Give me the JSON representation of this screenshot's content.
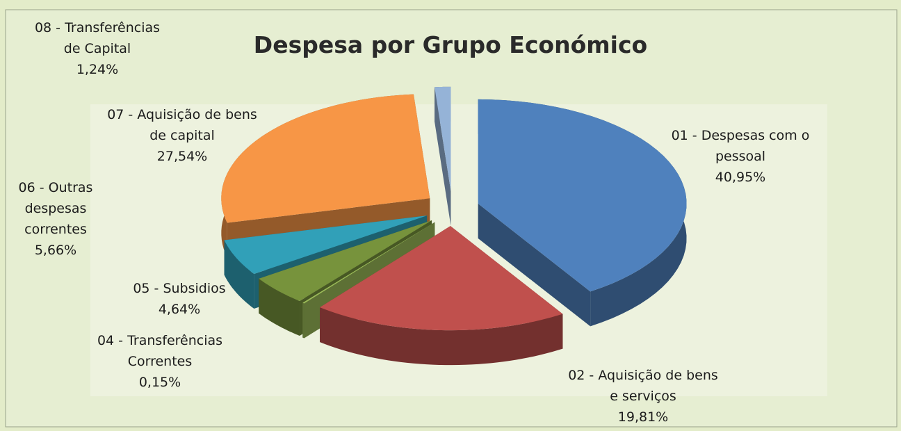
{
  "chart_data": {
    "type": "pie",
    "title": "Despesa por Grupo Económico",
    "categories": [
      "01 - Despesas com o pessoal",
      "02 - Aquisição de bens e serviços",
      "04 - Transferências Correntes",
      "05 - Subsidios",
      "06 - Outras despesas correntes",
      "07 - Aquisição de bens de capital",
      "08 - Transferências de Capital"
    ],
    "values": [
      40.95,
      19.81,
      0.15,
      4.64,
      5.66,
      27.54,
      1.24
    ],
    "value_labels": [
      "40,95%",
      "19,81%",
      "0,15%",
      "4,64%",
      "5,66%",
      "27,54%",
      "1,24%"
    ],
    "colors": [
      "#4f81bd",
      "#c0504d",
      "#9bbb59",
      "#77933c",
      "#8064a2",
      "#31a0b8",
      "#f79646",
      "#95b3d7"
    ]
  }
}
